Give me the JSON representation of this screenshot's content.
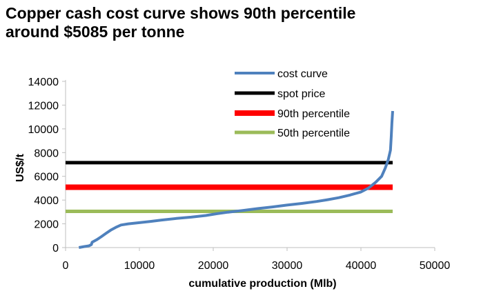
{
  "title": {
    "line1": "Copper cash cost curve shows 90th percentile",
    "line2": "around $5085 per tonne"
  },
  "chart_data": {
    "type": "line",
    "xlabel": "cumulative production (Mlb)",
    "ylabel": "US$/t",
    "xlim": [
      0,
      50000
    ],
    "ylim": [
      0,
      14000
    ],
    "x_ticks": [
      "0",
      "10000",
      "20000",
      "30000",
      "40000",
      "50000"
    ],
    "y_ticks": [
      "0",
      "2000",
      "4000",
      "6000",
      "8000",
      "10000",
      "12000",
      "14000"
    ],
    "grid": false,
    "legend_position": "top-center",
    "series": [
      {
        "name": "cost curve",
        "color": "#4f81bd",
        "x": [
          1800,
          2500,
          3200,
          3500,
          3600,
          4200,
          4800,
          5500,
          6200,
          6800,
          7500,
          8500,
          10000,
          11500,
          13000,
          15000,
          17000,
          19000,
          20500,
          22000,
          24000,
          26000,
          28000,
          30000,
          32000,
          34000,
          35500,
          37000,
          38500,
          40000,
          41000,
          42000,
          42800,
          43300,
          43700,
          44000,
          44100,
          44200,
          44300
        ],
        "y": [
          0,
          80,
          150,
          250,
          450,
          650,
          900,
          1200,
          1500,
          1700,
          1900,
          2000,
          2100,
          2200,
          2320,
          2450,
          2560,
          2700,
          2850,
          2980,
          3120,
          3280,
          3420,
          3580,
          3720,
          3880,
          4030,
          4200,
          4420,
          4680,
          5000,
          5500,
          6000,
          6700,
          7400,
          8200,
          9300,
          10500,
          11500
        ]
      },
      {
        "name": "spot price",
        "color": "#000000",
        "x": [
          0,
          44300
        ],
        "y": [
          7150,
          7150
        ]
      },
      {
        "name": "90th percentile",
        "color": "#ff0000",
        "x": [
          0,
          44300
        ],
        "y": [
          5085,
          5085
        ]
      },
      {
        "name": "50th percentile",
        "color": "#9bbb59",
        "x": [
          0,
          44300
        ],
        "y": [
          3050,
          3050
        ]
      }
    ]
  }
}
